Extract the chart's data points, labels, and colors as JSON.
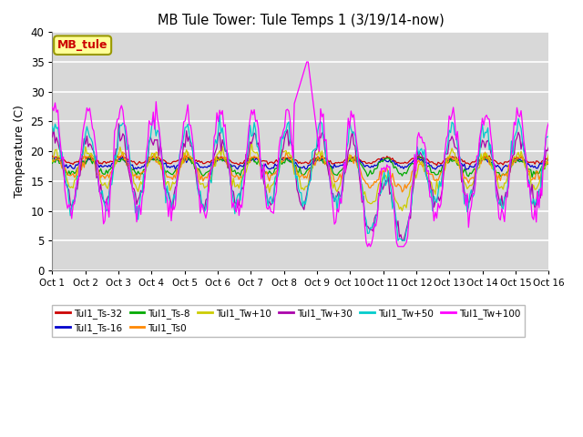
{
  "title": "MB Tule Tower: Tule Temps 1 (3/19/14-now)",
  "ylabel": "Temperature (C)",
  "xlim": [
    0,
    15
  ],
  "ylim": [
    0,
    40
  ],
  "yticks": [
    0,
    5,
    10,
    15,
    20,
    25,
    30,
    35,
    40
  ],
  "xtick_labels": [
    "Oct 1",
    "Oct 2",
    "Oct 3",
    "Oct 4",
    "Oct 5",
    "Oct 6",
    "Oct 7",
    "Oct 8",
    "Oct 9",
    "Oct 10",
    "Oct 11",
    "Oct 12",
    "Oct 13",
    "Oct 14",
    "Oct 15",
    "Oct 16"
  ],
  "background_color": "#ffffff",
  "plot_bg_color": "#d8d8d8",
  "grid_color": "#ffffff",
  "legend_box_color": "#ffff99",
  "legend_box_edge": "#999900",
  "series": [
    {
      "label": "Tul1_Ts-32",
      "color": "#cc0000"
    },
    {
      "label": "Tul1_Ts-16",
      "color": "#0000cc"
    },
    {
      "label": "Tul1_Ts-8",
      "color": "#00aa00"
    },
    {
      "label": "Tul1_Ts0",
      "color": "#ff8800"
    },
    {
      "label": "Tul1_Tw+10",
      "color": "#cccc00"
    },
    {
      "label": "Tul1_Tw+30",
      "color": "#aa00aa"
    },
    {
      "label": "Tul1_Tw+50",
      "color": "#00cccc"
    },
    {
      "label": "Tul1_Tw+100",
      "color": "#ff00ff"
    }
  ]
}
